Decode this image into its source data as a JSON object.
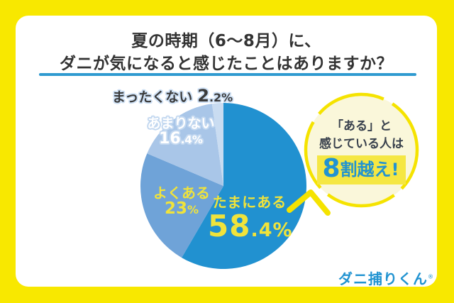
{
  "title": {
    "line1": "夏の時期（6～8月）に、",
    "line2": "ダニが気になると感じたことはありますか？"
  },
  "chart_data": {
    "type": "pie",
    "title": "夏の時期（6～8月）に、ダニが気になると感じたことはありますか？",
    "unit": "%",
    "direction": "clockwise",
    "start_angle_deg": 0,
    "slices": [
      {
        "label": "たまにある",
        "value": 58.4,
        "display": "58.4%",
        "display_main": "58",
        "display_sub": ".4%",
        "color": "#2191d0",
        "label_color": "#f0e33b"
      },
      {
        "label": "よくある",
        "value": 23,
        "display": "23%",
        "display_main": "23",
        "display_sub": "%",
        "color": "#6fa3d8",
        "label_color": "#f0e33b"
      },
      {
        "label": "あまりない",
        "value": 16.4,
        "display": "16.4%",
        "display_main": "16",
        "display_sub": ".4%",
        "color": "#a9c6e8",
        "label_color": "#ffffff"
      },
      {
        "label": "まったくない",
        "value": 2.2,
        "display": "2.2%",
        "display_main": "2",
        "display_sub": ".2%",
        "color": "#c9dcf1",
        "label_color": "#3b3b3b"
      }
    ],
    "annotation": "「ある」と感じている人は8割越え!"
  },
  "callout": {
    "line1": "「ある」と",
    "line2": "感じている人は",
    "highlight_big": "8",
    "highlight_rest": "割越え!",
    "fill_color": "#faf7da",
    "border_color": "#f5e300",
    "number_color": "#2193d1",
    "highlight_color": "#f5e743"
  },
  "logo": {
    "text": "ダニ捕りくん",
    "registered_mark": "®",
    "color": "#2193d1"
  },
  "colors": {
    "background": "#f8e800",
    "card": "#ffffff",
    "title_text": "#333333",
    "underline": "#2f9ad0"
  }
}
